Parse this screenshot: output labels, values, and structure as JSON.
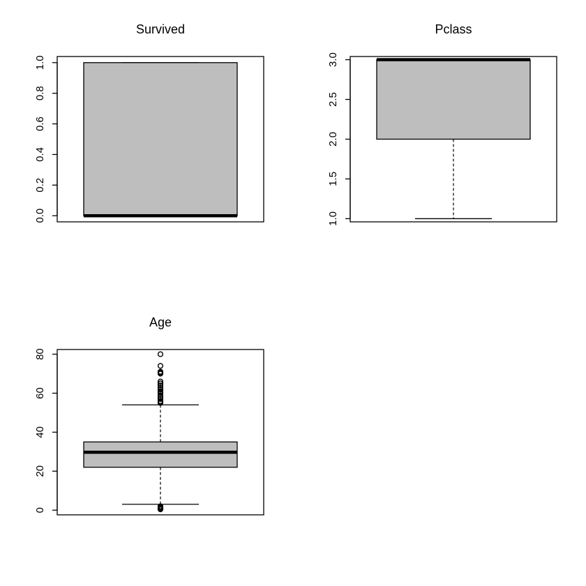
{
  "chart_data": [
    {
      "type": "box",
      "title": "Survived",
      "ylim": [
        -0.04,
        1.04
      ],
      "yticks": [
        0.0,
        0.2,
        0.4,
        0.6,
        0.8,
        1.0
      ],
      "ytick_labels": [
        "0.0",
        "0.2",
        "0.4",
        "0.6",
        "0.8",
        "1.0"
      ],
      "box": {
        "q1": 0,
        "median": 0,
        "q3": 1,
        "whisker_low": 0,
        "whisker_high": 1
      },
      "outliers": [],
      "fill": "#bebebe"
    },
    {
      "type": "box",
      "title": "Pclass",
      "ylim": [
        0.96,
        3.04
      ],
      "yticks": [
        1.0,
        1.5,
        2.0,
        2.5,
        3.0
      ],
      "ytick_labels": [
        "1.0",
        "1.5",
        "2.0",
        "2.5",
        "3.0"
      ],
      "box": {
        "q1": 2,
        "median": 3,
        "q3": 3,
        "whisker_low": 1,
        "whisker_high": 3
      },
      "outliers": [],
      "fill": "#bebebe"
    },
    {
      "type": "box",
      "title": "Age",
      "ylim": [
        -2.4,
        82.4
      ],
      "yticks": [
        0,
        20,
        40,
        60,
        80
      ],
      "ytick_labels": [
        "0",
        "20",
        "40",
        "60",
        "80"
      ],
      "box": {
        "q1": 22,
        "median": 29.7,
        "q3": 35,
        "whisker_low": 3,
        "whisker_high": 54
      },
      "outliers": [
        80,
        74,
        71,
        70.5,
        70,
        66,
        65,
        65,
        64,
        63,
        62,
        62,
        61,
        60.5,
        60,
        59,
        58,
        57,
        56,
        55.5,
        55,
        2,
        1.5,
        1,
        0.92,
        0.83,
        0.75,
        0.67,
        0.42
      ],
      "fill": "#bebebe"
    }
  ]
}
